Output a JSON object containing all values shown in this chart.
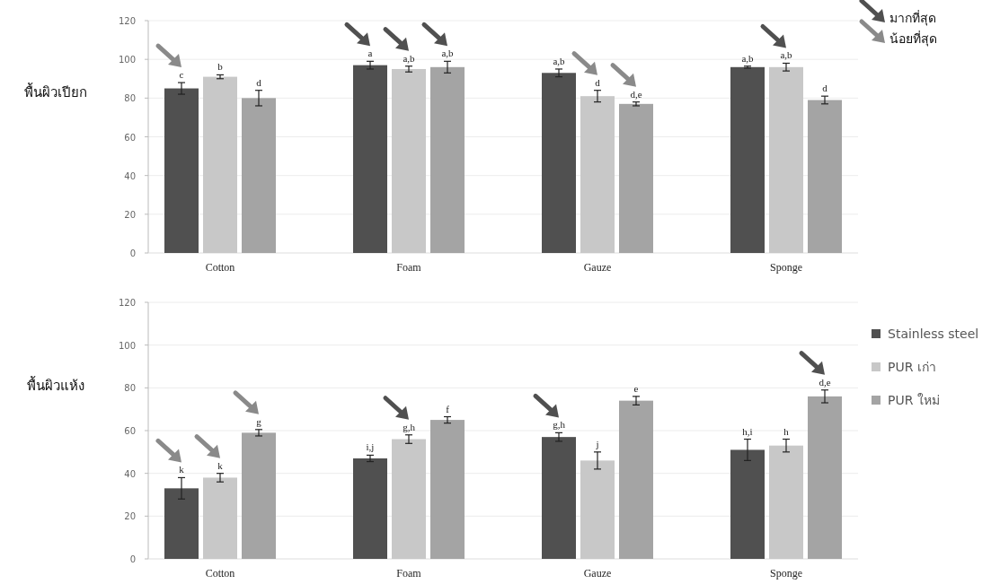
{
  "chart_data": [
    {
      "type": "bar",
      "ylabel": "พื้นผิวเปียก",
      "categories": [
        "Cotton",
        "Foam",
        "Gauze",
        "Sponge"
      ],
      "ylim": [
        0,
        120
      ],
      "yticks": [
        0,
        20,
        40,
        60,
        80,
        100,
        120
      ],
      "grid": "y",
      "series": [
        {
          "color": "#505050",
          "values": [
            85,
            97,
            93,
            96
          ],
          "errors": [
            3,
            2,
            2,
            0.5
          ],
          "value_labels": [
            "c",
            "a",
            "a,b",
            "a,b"
          ]
        },
        {
          "color": "#c8c8c8",
          "values": [
            91,
            95,
            81,
            96
          ],
          "errors": [
            1,
            1.5,
            3,
            2
          ],
          "value_labels": [
            "b",
            "a,b",
            "d",
            "a,b"
          ]
        },
        {
          "color": "#a4a4a4",
          "values": [
            80,
            96,
            77,
            79
          ],
          "errors": [
            4,
            3,
            1,
            2
          ],
          "value_labels": [
            "d",
            "a,b",
            "d,e",
            "d"
          ]
        }
      ],
      "annotations": [
        "มากที่สุด",
        "น้อยที่สุด"
      ]
    },
    {
      "type": "bar",
      "ylabel": "พื้นผิวแห้ง",
      "categories": [
        "Cotton",
        "Foam",
        "Gauze",
        "Sponge"
      ],
      "ylim": [
        0,
        120
      ],
      "yticks": [
        0,
        20,
        40,
        60,
        80,
        100,
        120
      ],
      "grid": "y",
      "legend": "right",
      "series": [
        {
          "name": "Stainless steel",
          "color": "#505050",
          "values": [
            33,
            47,
            57,
            51
          ],
          "errors": [
            5,
            1.5,
            2,
            5
          ],
          "value_labels": [
            "k",
            "i,j",
            "g,h",
            "h,i"
          ]
        },
        {
          "name": "PUR เก่า",
          "color": "#c8c8c8",
          "values": [
            38,
            56,
            46,
            53
          ],
          "errors": [
            2,
            2,
            4,
            3
          ],
          "value_labels": [
            "k",
            "g,h",
            "j",
            "h"
          ]
        },
        {
          "name": "PUR ใหม่",
          "color": "#a4a4a4",
          "values": [
            59,
            65,
            74,
            76
          ],
          "errors": [
            1.5,
            1.5,
            2,
            3
          ],
          "value_labels": [
            "g",
            "f",
            "e",
            "d,e"
          ]
        }
      ]
    }
  ]
}
